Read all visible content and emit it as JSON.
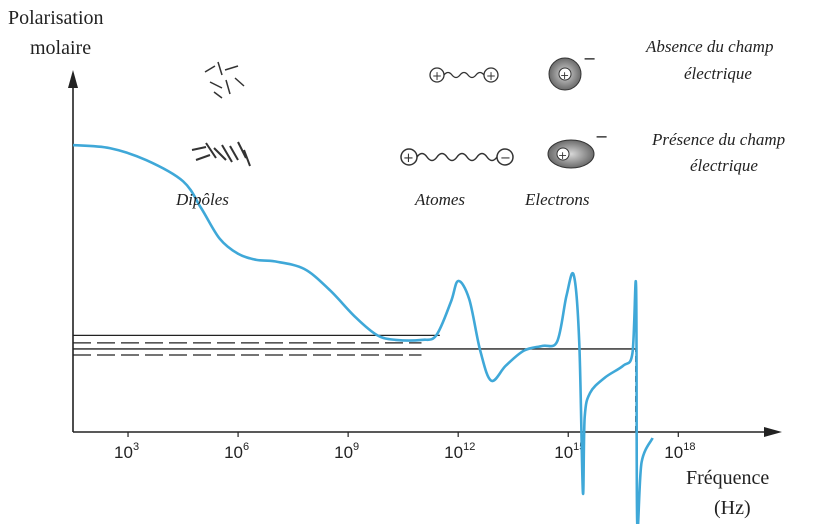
{
  "chart_data": {
    "type": "line",
    "title": "",
    "ylabel_lines": [
      "Polarisation",
      "molaire"
    ],
    "xlabel_lines": [
      "Fréquence",
      "(Hz)"
    ],
    "x_scale": "log10",
    "xlim_exponent": [
      1.5,
      20.5
    ],
    "ylim": [
      0,
      100
    ],
    "x_ticks": [
      {
        "base": "10",
        "exp": "3",
        "value_exp": 3
      },
      {
        "base": "10",
        "exp": "6",
        "value_exp": 6
      },
      {
        "base": "10",
        "exp": "9",
        "value_exp": 9
      },
      {
        "base": "10",
        "exp": "12",
        "value_exp": 12
      },
      {
        "base": "10",
        "exp": "15",
        "value_exp": 15
      },
      {
        "base": "10",
        "exp": "18",
        "value_exp": 18
      }
    ],
    "series": [
      {
        "color": "#3fa8d8",
        "points_log_x": [
          [
            1.5,
            95
          ],
          [
            2.5,
            94
          ],
          [
            3.5,
            90
          ],
          [
            4.5,
            83
          ],
          [
            5.0,
            74
          ],
          [
            5.5,
            64
          ],
          [
            6.0,
            59
          ],
          [
            6.5,
            57
          ],
          [
            7.0,
            56.5
          ],
          [
            7.8,
            54
          ],
          [
            8.5,
            47
          ],
          [
            9.2,
            38
          ],
          [
            9.8,
            32
          ],
          [
            10.3,
            30.5
          ],
          [
            11.0,
            30.5
          ],
          [
            11.4,
            32
          ],
          [
            11.8,
            43
          ],
          [
            12.0,
            50
          ],
          [
            12.3,
            44
          ],
          [
            12.6,
            27
          ],
          [
            12.9,
            17
          ],
          [
            13.3,
            22
          ],
          [
            13.8,
            27
          ],
          [
            14.3,
            28.5
          ],
          [
            14.7,
            30
          ],
          [
            14.95,
            45
          ],
          [
            15.15,
            52
          ],
          [
            15.3,
            30
          ],
          [
            15.4,
            -20
          ],
          [
            15.45,
            5
          ],
          [
            15.6,
            13
          ],
          [
            16.0,
            18
          ],
          [
            16.5,
            22
          ],
          [
            16.75,
            26
          ],
          [
            16.85,
            48
          ],
          [
            16.88,
            -30
          ],
          [
            17.0,
            -10
          ],
          [
            17.3,
            -2
          ]
        ]
      }
    ],
    "reference_lines": [
      {
        "style": "solid",
        "y": 32,
        "x_exp_range": [
          1.5,
          11.5
        ]
      },
      {
        "style": "solid",
        "y": 27.5,
        "x_exp_range": [
          1.5,
          16.85
        ]
      },
      {
        "style": "dashed",
        "y": 29.5,
        "x_exp_range": [
          1.5,
          11.0
        ]
      },
      {
        "style": "dashed",
        "y": 25.5,
        "x_exp_range": [
          1.5,
          11.0
        ]
      },
      {
        "style": "dashed-vertical",
        "x_exp": 16.85,
        "y_range": [
          0,
          27.5
        ]
      }
    ],
    "annotations": [
      "Dipôles",
      "Atomes",
      "Electrons"
    ],
    "legend_rows": [
      {
        "text_lines": [
          "Absence du champ",
          "électrique"
        ]
      },
      {
        "text_lines": [
          "Présence du champ",
          "électrique"
        ]
      }
    ]
  }
}
